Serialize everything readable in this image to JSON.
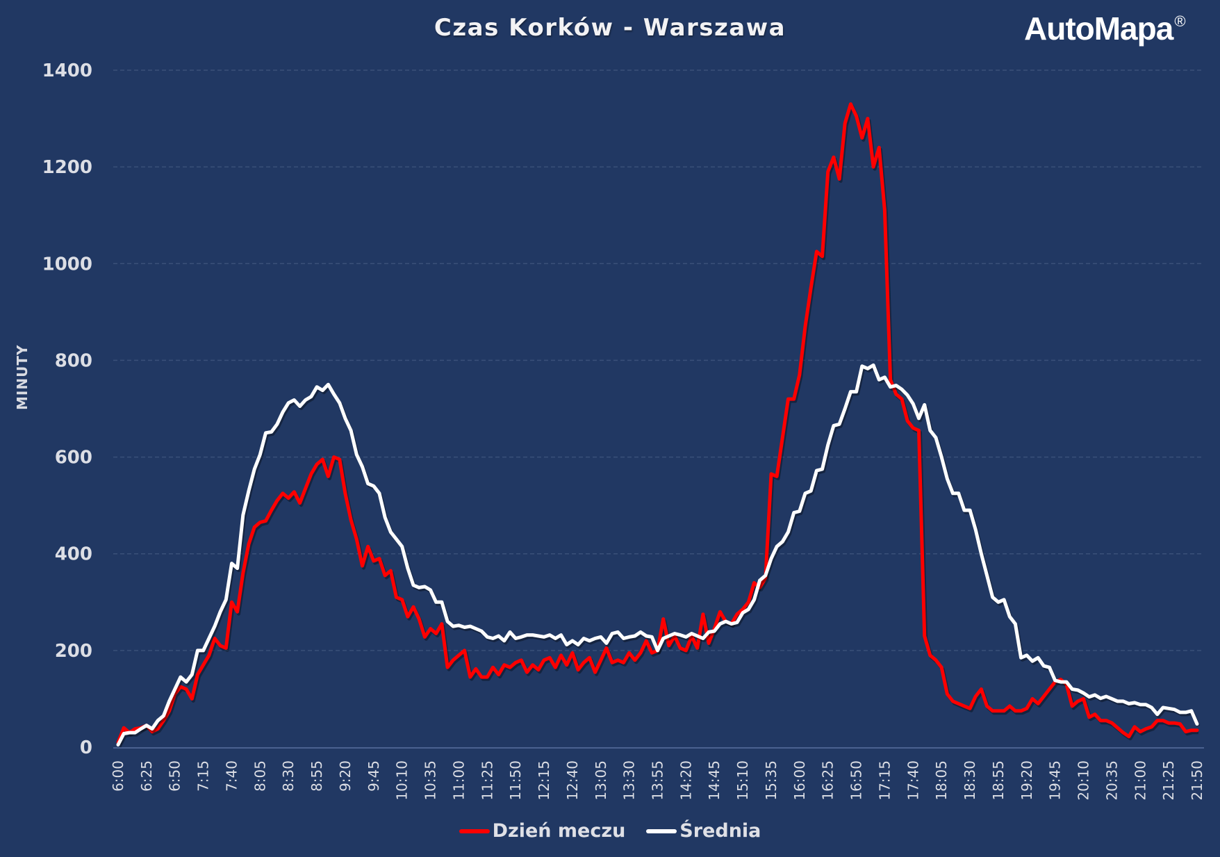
{
  "header": {
    "title": "Czas Korków - Warszawa",
    "logo_text": "AutoMapa",
    "logo_mark": "®"
  },
  "colors": {
    "background": "#213863",
    "grid": "#3a5079",
    "series_match_day": "#ff0000",
    "series_average": "#ffffff",
    "text": "#dcdee5"
  },
  "legend": [
    {
      "label": "Dzień meczu",
      "color": "#ff0000"
    },
    {
      "label": "Średnia",
      "color": "#ffffff"
    }
  ],
  "chart_data": {
    "type": "line",
    "title": "Czas Korków - Warszawa",
    "xlabel": "",
    "ylabel": "MINUTY",
    "ylim": [
      0,
      1400
    ],
    "yticks": [
      0,
      200,
      400,
      600,
      800,
      1000,
      1200,
      1400
    ],
    "grid": true,
    "legend_position": "bottom",
    "x_start": "6:00",
    "x_end": "21:50",
    "x_step_minutes": 5,
    "xtick_labels": [
      "6:00",
      "6:25",
      "6:50",
      "7:15",
      "7:40",
      "8:05",
      "8:30",
      "8:55",
      "9:20",
      "9:45",
      "10:10",
      "10:35",
      "11:00",
      "11:25",
      "11:50",
      "12:15",
      "12:40",
      "13:05",
      "13:30",
      "13:55",
      "14:20",
      "14:45",
      "15:10",
      "15:35",
      "16:00",
      "16:25",
      "16:50",
      "17:15",
      "17:40",
      "18:05",
      "18:30",
      "18:55",
      "19:20",
      "19:45",
      "20:10",
      "20:35",
      "21:00",
      "21:25",
      "21:50"
    ],
    "series": [
      {
        "name": "Dzień meczu",
        "color": "#ff0000",
        "values": [
          10,
          40,
          30,
          38,
          40,
          45,
          32,
          38,
          55,
          75,
          110,
          125,
          120,
          100,
          150,
          170,
          190,
          225,
          210,
          205,
          300,
          280,
          360,
          420,
          455,
          465,
          468,
          490,
          510,
          525,
          515,
          528,
          505,
          535,
          565,
          585,
          595,
          560,
          600,
          595,
          525,
          470,
          430,
          375,
          415,
          385,
          390,
          355,
          365,
          310,
          305,
          270,
          290,
          265,
          228,
          245,
          235,
          255,
          165,
          180,
          190,
          200,
          145,
          162,
          145,
          145,
          165,
          150,
          170,
          165,
          175,
          180,
          155,
          170,
          160,
          180,
          185,
          165,
          190,
          170,
          195,
          160,
          175,
          185,
          155,
          180,
          205,
          175,
          180,
          175,
          195,
          180,
          195,
          220,
          195,
          200,
          265,
          210,
          230,
          205,
          200,
          230,
          205,
          275,
          215,
          245,
          280,
          260,
          255,
          275,
          285,
          300,
          340,
          330,
          350,
          565,
          560,
          640,
          720,
          720,
          770,
          870,
          950,
          1025,
          1015,
          1190,
          1220,
          1175,
          1290,
          1330,
          1305,
          1260,
          1300,
          1200,
          1240,
          1110,
          760,
          730,
          720,
          675,
          660,
          655,
          230,
          190,
          180,
          165,
          110,
          95,
          90,
          85,
          80,
          105,
          120,
          85,
          75,
          75,
          75,
          85,
          75,
          75,
          80,
          100,
          90,
          105,
          120,
          135,
          140,
          130,
          85,
          95,
          100,
          62,
          68,
          55,
          55,
          50,
          40,
          30,
          22,
          42,
          32,
          38,
          42,
          55,
          55,
          50,
          50,
          48,
          32,
          35,
          35
        ]
      },
      {
        "name": "Średnia",
        "color": "#ffffff",
        "values": [
          5,
          28,
          30,
          30,
          38,
          45,
          38,
          55,
          65,
          95,
          120,
          145,
          135,
          150,
          200,
          200,
          225,
          250,
          280,
          305,
          380,
          370,
          480,
          530,
          575,
          605,
          650,
          652,
          668,
          693,
          712,
          718,
          705,
          718,
          725,
          745,
          738,
          750,
          730,
          712,
          680,
          655,
          605,
          580,
          545,
          540,
          525,
          475,
          445,
          430,
          415,
          370,
          335,
          330,
          332,
          325,
          300,
          300,
          260,
          250,
          252,
          248,
          250,
          245,
          240,
          228,
          225,
          230,
          220,
          238,
          225,
          228,
          232,
          232,
          230,
          228,
          232,
          225,
          232,
          212,
          220,
          212,
          225,
          220,
          225,
          228,
          215,
          235,
          238,
          225,
          228,
          230,
          238,
          230,
          228,
          200,
          225,
          230,
          235,
          232,
          228,
          235,
          230,
          225,
          238,
          240,
          255,
          260,
          255,
          258,
          278,
          285,
          305,
          345,
          355,
          390,
          415,
          425,
          445,
          485,
          488,
          525,
          530,
          572,
          575,
          625,
          665,
          668,
          700,
          735,
          735,
          788,
          783,
          790,
          760,
          765,
          745,
          748,
          740,
          728,
          710,
          680,
          708,
          655,
          640,
          600,
          555,
          525,
          525,
          490,
          490,
          450,
          400,
          355,
          310,
          300,
          305,
          270,
          255,
          185,
          190,
          178,
          185,
          168,
          165,
          138,
          135,
          135,
          120,
          118,
          112,
          104,
          108,
          101,
          105,
          100,
          95,
          95,
          90,
          92,
          88,
          88,
          82,
          68,
          82,
          80,
          78,
          72,
          72,
          75,
          48
        ]
      }
    ]
  }
}
